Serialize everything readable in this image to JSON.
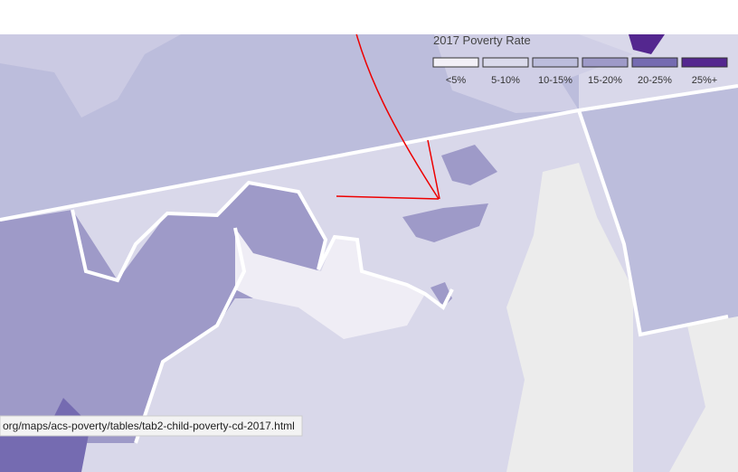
{
  "legend": {
    "title": "2017 Poverty Rate",
    "items": [
      {
        "label": "<5%",
        "color": "#f2f0f7"
      },
      {
        "label": "5-10%",
        "color": "#dadaeb"
      },
      {
        "label": "10-15%",
        "color": "#bcbddc"
      },
      {
        "label": "15-20%",
        "color": "#9e9ac8"
      },
      {
        "label": "20-25%",
        "color": "#756bb1"
      },
      {
        "label": "25%+",
        "color": "#54278f"
      }
    ]
  },
  "status_bar": {
    "url": "org/maps/acs-poverty/tables/tab2-child-poverty-cd-2017.html"
  }
}
